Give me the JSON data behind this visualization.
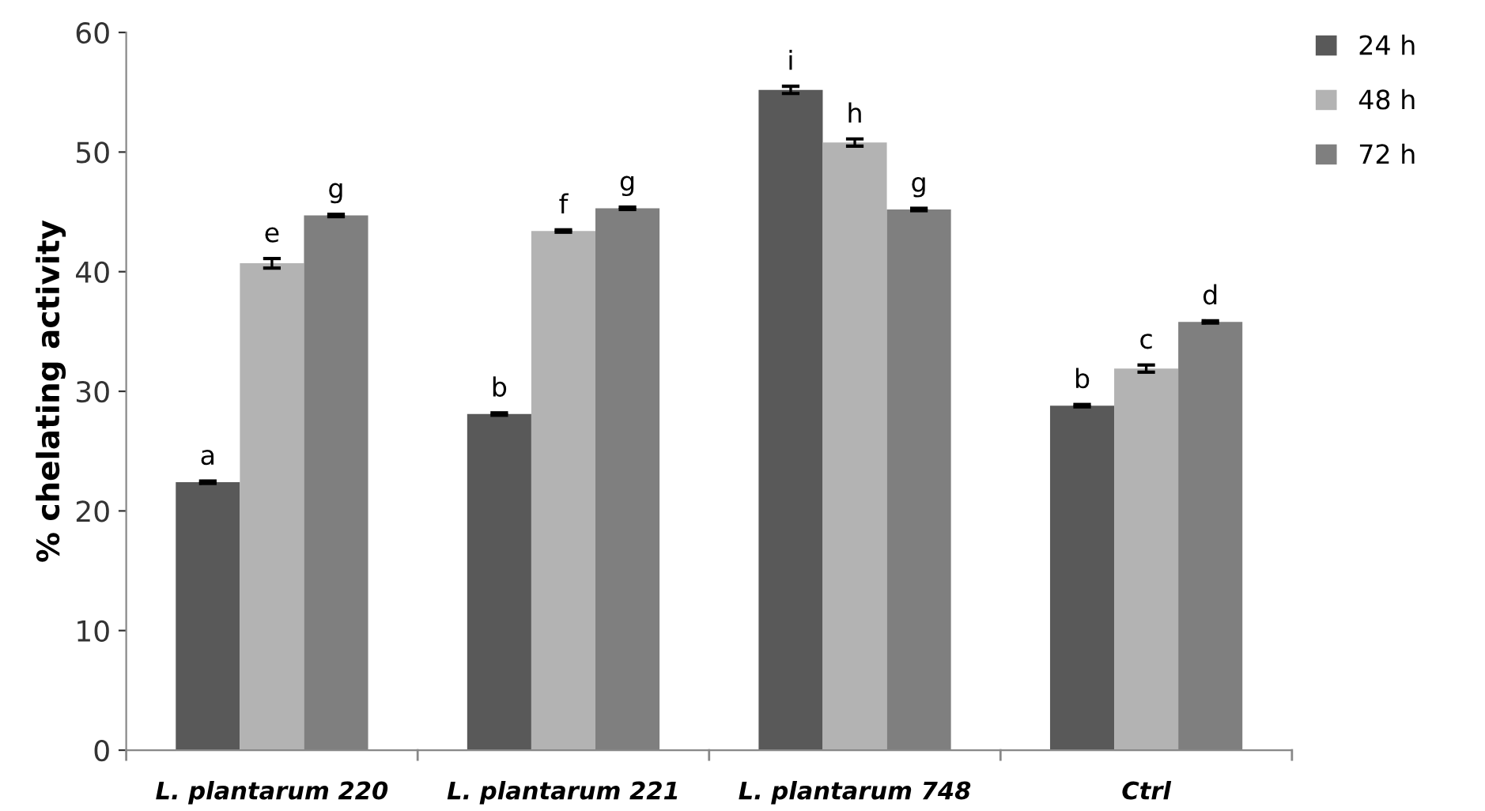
{
  "chart_data": {
    "type": "bar",
    "ylabel": "% chelating activity",
    "categories": [
      "L. plantarum 220",
      "L. plantarum 221",
      "L. plantarum 748",
      "Ctrl"
    ],
    "series": [
      {
        "name": "24 h",
        "color": "#595959",
        "values": [
          22.4,
          28.1,
          55.2,
          28.8
        ],
        "errors": [
          0.1,
          0.1,
          0.3,
          0.1
        ],
        "value_labels": [
          "a",
          "b",
          "i",
          "b"
        ]
      },
      {
        "name": "48 h",
        "color": "#b3b3b3",
        "values": [
          40.7,
          43.4,
          50.8,
          31.9
        ],
        "errors": [
          0.4,
          0.1,
          0.3,
          0.3
        ],
        "value_labels": [
          "e",
          "f",
          "h",
          "c"
        ]
      },
      {
        "name": "72 h",
        "color": "#7f7f7f",
        "values": [
          44.7,
          45.3,
          45.2,
          35.8
        ],
        "errors": [
          0.1,
          0.1,
          0.1,
          0.1
        ],
        "value_labels": [
          "g",
          "g",
          "g",
          "d"
        ]
      }
    ],
    "ylim": [
      0,
      60
    ],
    "yticks": [
      0,
      10,
      20,
      30,
      40,
      50,
      60
    ],
    "grid": false,
    "legend": "top right"
  }
}
